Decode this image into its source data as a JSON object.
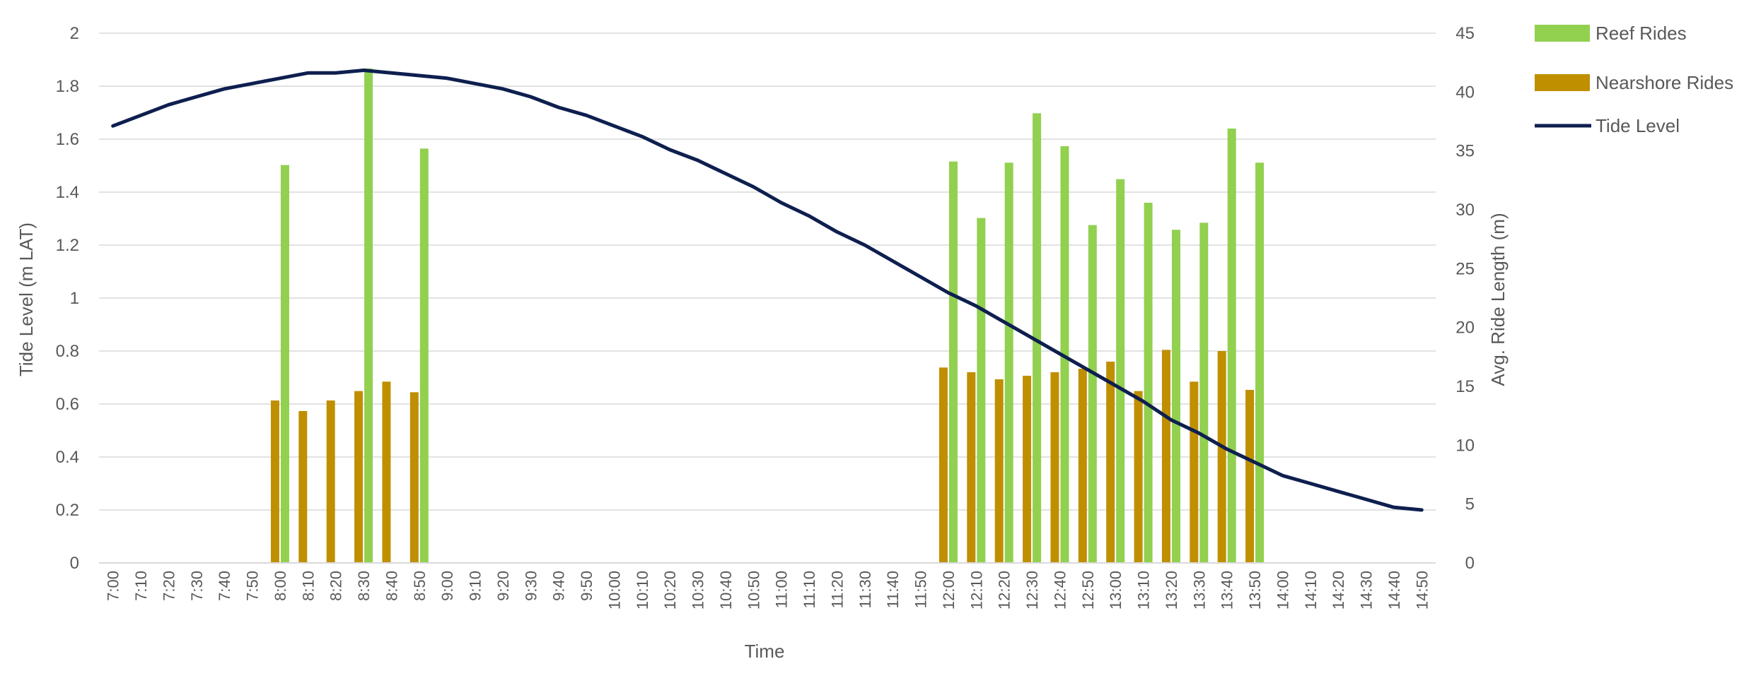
{
  "chart_data": {
    "type": "bar",
    "xlabel": "Time",
    "ylabel": "Tide Level (m LAT)",
    "y2label": "Avg. Ride Length (m)",
    "ylim": [
      0,
      2
    ],
    "y2lim": [
      0,
      45
    ],
    "yticks": [
      "0",
      "0.2",
      "0.4",
      "0.6",
      "0.8",
      "1",
      "1.2",
      "1.4",
      "1.6",
      "1.8",
      "2"
    ],
    "y2ticks": [
      "0",
      "5",
      "10",
      "15",
      "20",
      "25",
      "30",
      "35",
      "40",
      "45"
    ],
    "categories": [
      "7:00",
      "7:10",
      "7:20",
      "7:30",
      "7:40",
      "7:50",
      "8:00",
      "8:10",
      "8:20",
      "8:30",
      "8:40",
      "8:50",
      "9:00",
      "9:10",
      "9:20",
      "9:30",
      "9:40",
      "9:50",
      "10:00",
      "10:10",
      "10:20",
      "10:30",
      "10:40",
      "10:50",
      "11:00",
      "11:10",
      "11:20",
      "11:30",
      "11:40",
      "11:50",
      "12:00",
      "12:10",
      "12:20",
      "12:30",
      "12:40",
      "12:50",
      "13:00",
      "13:10",
      "13:20",
      "13:30",
      "13:40",
      "13:50",
      "14:00",
      "14:10",
      "14:20",
      "14:30",
      "14:40",
      "14:50"
    ],
    "grid": true,
    "legend_position": "right",
    "series": [
      {
        "name": "Reef Rides",
        "type": "bar",
        "axis": "right",
        "color": "#92d050",
        "values": [
          null,
          null,
          null,
          null,
          null,
          null,
          33.8,
          null,
          null,
          42.0,
          null,
          35.2,
          null,
          null,
          null,
          null,
          null,
          null,
          null,
          null,
          null,
          null,
          null,
          null,
          null,
          null,
          null,
          null,
          null,
          null,
          34.1,
          29.3,
          34.0,
          38.2,
          35.4,
          28.7,
          32.6,
          30.6,
          28.3,
          28.9,
          36.9,
          34.0,
          null,
          null,
          null,
          null,
          null,
          null
        ]
      },
      {
        "name": "Nearshore Rides",
        "type": "bar",
        "axis": "right",
        "color": "#bf8f00",
        "values": [
          null,
          null,
          null,
          null,
          null,
          null,
          13.8,
          12.9,
          13.8,
          14.6,
          15.4,
          14.5,
          null,
          null,
          null,
          null,
          null,
          null,
          null,
          null,
          null,
          null,
          null,
          null,
          null,
          null,
          null,
          null,
          null,
          null,
          16.6,
          16.2,
          15.6,
          15.9,
          16.2,
          16.5,
          17.1,
          14.6,
          18.1,
          15.4,
          18.0,
          14.7,
          null,
          null,
          null,
          null,
          null,
          null
        ]
      },
      {
        "name": "Tide Level",
        "type": "line",
        "axis": "left",
        "color": "#0e1f4f",
        "values": [
          1.65,
          1.69,
          1.73,
          1.76,
          1.79,
          1.81,
          1.83,
          1.85,
          1.85,
          1.86,
          1.85,
          1.84,
          1.83,
          1.81,
          1.79,
          1.76,
          1.72,
          1.69,
          1.65,
          1.61,
          1.56,
          1.52,
          1.47,
          1.42,
          1.36,
          1.31,
          1.25,
          1.2,
          1.14,
          1.08,
          1.02,
          0.97,
          0.91,
          0.85,
          0.79,
          0.73,
          0.67,
          0.61,
          0.54,
          0.49,
          0.43,
          0.38,
          0.33,
          0.3,
          0.27,
          0.24,
          0.21,
          0.2
        ]
      }
    ]
  }
}
